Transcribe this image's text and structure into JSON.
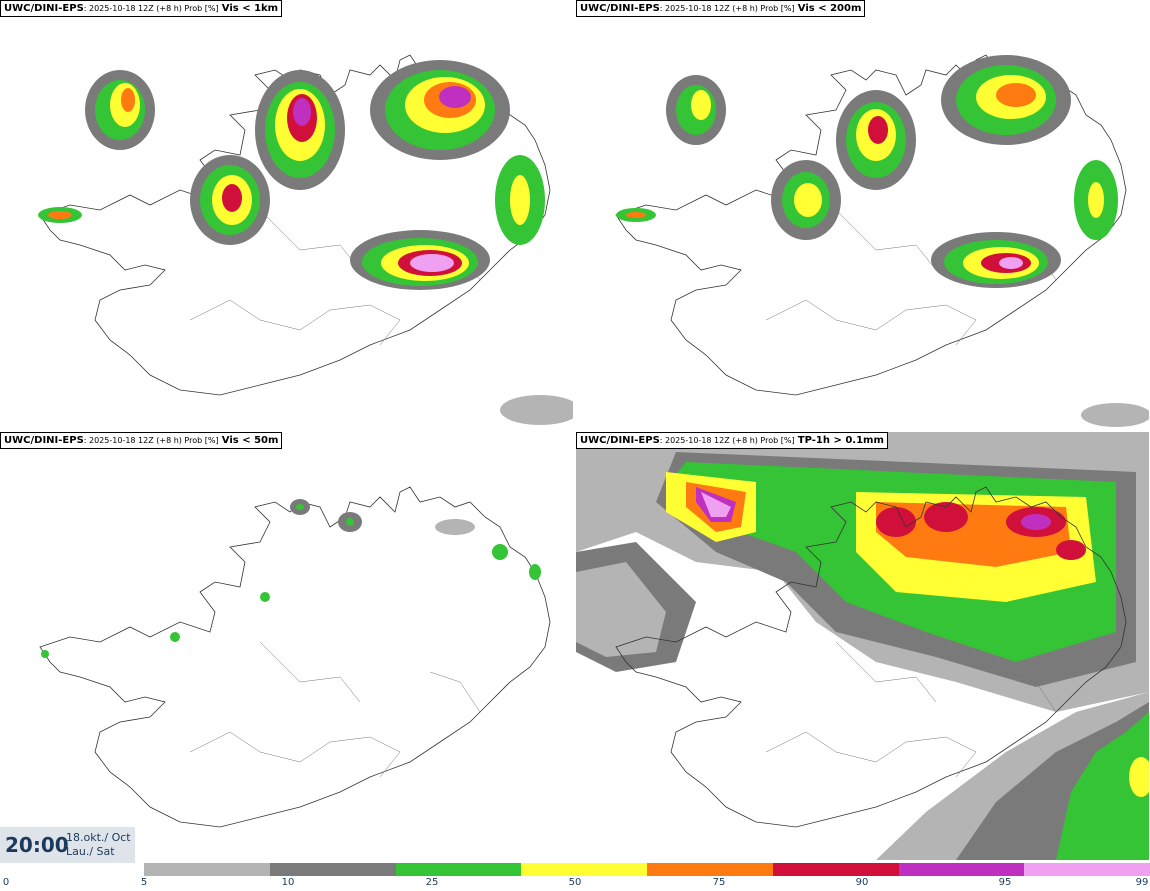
{
  "panels": [
    {
      "model": "UWC/DINI-EPS",
      "meta": ": 2025-10-18 12Z (+8 h) Prob [%]",
      "variable": "Vis < 1km"
    },
    {
      "model": "UWC/DINI-EPS",
      "meta": ": 2025-10-18 12Z (+8 h) Prob [%]",
      "variable": "Vis < 200m"
    },
    {
      "model": "UWC/DINI-EPS",
      "meta": ": 2025-10-18 12Z (+8 h) Prob [%]",
      "variable": "Vis < 50m"
    },
    {
      "model": "UWC/DINI-EPS",
      "meta": ": 2025-10-18 12Z (+8 h) Prob [%]",
      "variable": "TP-1h > 0.1mm"
    }
  ],
  "valid_time": {
    "time": "20:00",
    "date_line1": "18.okt./ Oct",
    "date_line2": "Lau./ Sat"
  },
  "legend": {
    "ticks": [
      "0",
      "5",
      "10",
      "25",
      "50",
      "75",
      "90",
      "95",
      "99"
    ],
    "colors": [
      "#b4b4b4",
      "#7a7a7a",
      "#35c435",
      "#ffff33",
      "#ff7a10",
      "#d0103a",
      "#c030c0",
      "#f0a0f0"
    ]
  },
  "colors": {
    "gray_light": "#b4b4b4",
    "gray_dark": "#7a7a7a",
    "green": "#35c435",
    "yellow": "#ffff33",
    "orange": "#ff7a10",
    "red": "#d0103a",
    "magenta": "#c030c0",
    "pink": "#f0a0f0"
  }
}
